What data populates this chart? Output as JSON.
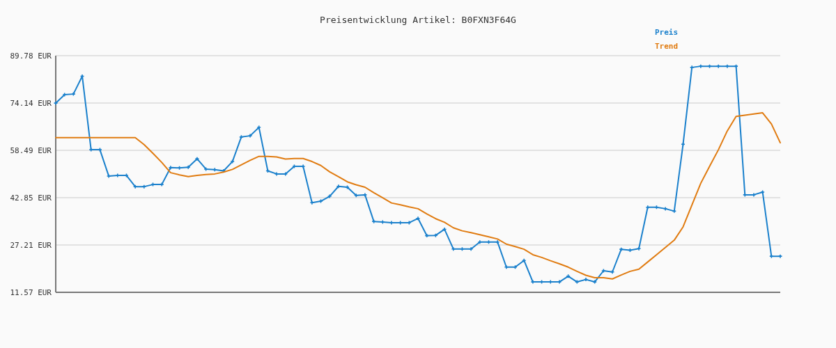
{
  "chart_data": {
    "type": "line",
    "title": "Preisentwicklung Artikel: B0FXN3F64G",
    "categories": [
      null,
      null,
      null,
      null,
      null,
      null,
      null,
      null,
      null,
      null,
      null,
      null,
      null,
      null,
      null,
      null,
      null,
      null,
      null,
      null,
      null,
      null,
      null,
      null,
      null,
      null,
      null,
      null,
      null,
      null,
      null,
      null,
      null,
      null,
      null,
      null,
      null,
      null,
      null,
      null,
      null,
      null,
      null,
      null,
      null,
      null,
      null,
      null,
      null,
      null,
      null,
      null,
      null,
      null,
      null,
      null,
      null,
      null,
      null,
      null,
      null,
      null,
      null,
      null,
      null,
      null,
      null,
      null,
      null,
      null,
      null,
      null,
      null,
      null,
      null,
      null,
      null,
      null,
      null,
      null,
      null,
      null,
      null
    ],
    "series": [
      {
        "name": "Preis",
        "color": "#1a80cc",
        "marker": "cross",
        "values": [
          74.1,
          76.9,
          77.1,
          83.0,
          58.7,
          58.7,
          50.0,
          50.2,
          50.2,
          46.5,
          46.5,
          47.2,
          47.2,
          52.8,
          52.7,
          52.9,
          55.7,
          52.3,
          52.1,
          51.7,
          54.8,
          62.9,
          63.3,
          66.1,
          51.7,
          50.7,
          50.7,
          53.2,
          53.2,
          41.2,
          41.7,
          43.3,
          46.6,
          46.3,
          43.6,
          43.8,
          35.0,
          34.8,
          34.6,
          34.6,
          34.6,
          36.0,
          30.3,
          30.4,
          32.4,
          25.9,
          25.9,
          25.9,
          28.2,
          28.2,
          28.2,
          19.9,
          19.9,
          22.1,
          15.0,
          15.0,
          15.0,
          15.0,
          16.9,
          15.0,
          15.8,
          15.0,
          18.7,
          18.3,
          25.8,
          25.5,
          26.0,
          39.7,
          39.7,
          39.2,
          38.4,
          60.5,
          85.9,
          86.3,
          86.3,
          86.3,
          86.3,
          86.3,
          43.8,
          43.8,
          44.7,
          23.5,
          23.5
        ]
      },
      {
        "name": "Trend",
        "color": "#e07b10",
        "marker": "none",
        "values": [
          62.7,
          62.7,
          62.7,
          62.7,
          62.7,
          62.7,
          62.7,
          62.7,
          62.7,
          62.7,
          60.4,
          57.5,
          54.5,
          51.1,
          50.4,
          49.8,
          50.2,
          50.5,
          50.7,
          51.3,
          52.2,
          53.7,
          55.2,
          56.5,
          56.5,
          56.3,
          55.6,
          55.8,
          55.8,
          54.8,
          53.5,
          51.4,
          49.8,
          48.1,
          47.1,
          46.3,
          44.5,
          42.8,
          41.1,
          40.5,
          39.8,
          39.2,
          37.5,
          35.9,
          34.7,
          32.9,
          31.9,
          31.3,
          30.6,
          29.9,
          29.2,
          27.5,
          26.7,
          25.8,
          24.0,
          23.1,
          22.0,
          21.0,
          19.9,
          18.5,
          17.2,
          16.4,
          16.4,
          16.0,
          17.3,
          18.5,
          19.2,
          21.6,
          24.0,
          26.4,
          28.8,
          33.2,
          40.4,
          47.6,
          53.2,
          58.7,
          64.9,
          69.7,
          70.1,
          70.5,
          70.9,
          67.2,
          61.0
        ]
      }
    ],
    "ylim": [
      11.57,
      89.78
    ],
    "yticks": [
      {
        "value": 11.57,
        "label": "11.57 EUR"
      },
      {
        "value": 27.21,
        "label": "27.21 EUR"
      },
      {
        "value": 42.85,
        "label": "42.85 EUR"
      },
      {
        "value": 58.49,
        "label": "58.49 EUR"
      },
      {
        "value": 74.14,
        "label": "74.14 EUR"
      },
      {
        "value": 89.78,
        "label": "89.78 EUR"
      }
    ],
    "grid": "y",
    "legend": "top right",
    "line_style": "solid"
  }
}
